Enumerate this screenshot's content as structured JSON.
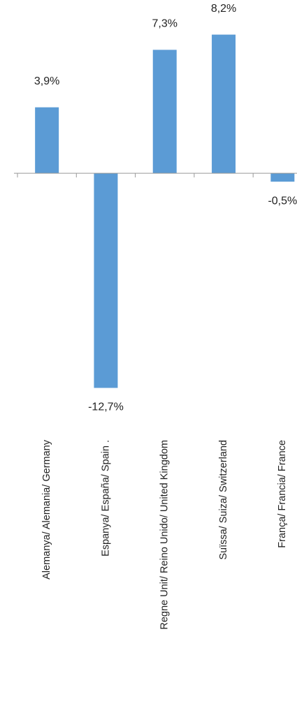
{
  "chart_data": {
    "type": "bar",
    "categories": [
      "Alemanya/ Alemania/ Germany",
      "Espanya/ España/ Spain  .",
      "Regne Unit/ Reino Unido/ United Kingdom",
      "Suïssa/ Suiza/ Switzerland",
      "França/ Francia/ France"
    ],
    "values": [
      3.9,
      -12.7,
      7.3,
      8.2,
      -0.5
    ],
    "value_labels": [
      "3,9%",
      "-12,7%",
      "7,3%",
      "8,2%",
      "-0,5%"
    ],
    "color": "#5b9bd5",
    "ylim": [
      -14,
      10
    ]
  }
}
